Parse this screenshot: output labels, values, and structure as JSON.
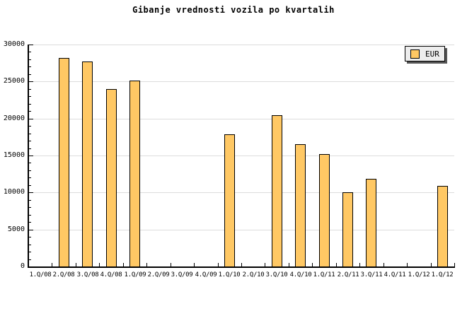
{
  "title": "Gibanje vrednosti vozila po kvartalih",
  "legend": {
    "label": "EUR"
  },
  "colors": {
    "background": "#FFFFFF",
    "bar_fill": "#FFC864",
    "bar_border": "#000000",
    "grid": "#DCDCDC",
    "axis": "#000000",
    "text": "#000000",
    "legend_bg": "#EDEDED",
    "legend_border": "#000000",
    "legend_shadow": "#555555"
  },
  "chart_data": {
    "type": "bar",
    "title": "Gibanje vrednosti vozila po kvartalih",
    "categories": [
      "1.Q/08",
      "2.Q/08",
      "3.Q/08",
      "4.Q/08",
      "1.Q/09",
      "2.Q/09",
      "3.Q/09",
      "4.Q/09",
      "1.Q/10",
      "2.Q/10",
      "3.Q/10",
      "4.Q/10",
      "1.Q/11",
      "2.Q/11",
      "3.Q/11",
      "4.Q/11",
      "1.Q/12",
      "1.Q/12"
    ],
    "series": [
      {
        "name": "EUR",
        "values": [
          null,
          28200,
          27700,
          24000,
          25100,
          null,
          null,
          null,
          17900,
          null,
          20400,
          16500,
          15200,
          10000,
          11800,
          null,
          null,
          10900
        ]
      }
    ],
    "xlabel": "",
    "ylabel": "",
    "ylim": [
      0,
      30000
    ],
    "y_major_step": 5000,
    "y_minor_step": 1000,
    "y_tick_labels": [
      "0",
      "5000",
      "10000",
      "15000",
      "20000",
      "25000",
      "30000"
    ],
    "grid": "horizontal-major",
    "legend_position": "top-right"
  }
}
